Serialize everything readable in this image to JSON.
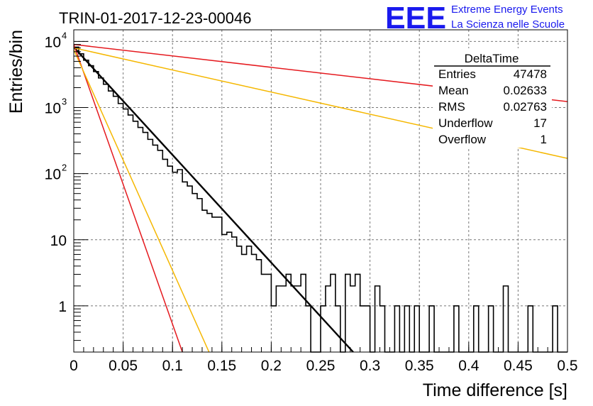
{
  "chart_data": {
    "type": "line",
    "title": "TRIN-01-2017-12-23-00046",
    "xlabel": "Time difference [s]",
    "ylabel": "Entries/bin",
    "xlim": [
      0,
      0.5
    ],
    "ylim": [
      0.2,
      15000
    ],
    "y_scale": "log",
    "grid": true,
    "x_ticks": [
      "0",
      "0.05",
      "0.1",
      "0.15",
      "0.2",
      "0.25",
      "0.3",
      "0.35",
      "0.4",
      "0.45",
      "0.5"
    ],
    "y_ticks": [
      {
        "value": 1,
        "label": "1"
      },
      {
        "value": 10,
        "label": "10"
      },
      {
        "value": 100,
        "label": "10",
        "exp": "2"
      },
      {
        "value": 1000,
        "label": "10",
        "exp": "3"
      },
      {
        "value": 10000,
        "label": "10",
        "exp": "4"
      }
    ],
    "histogram": {
      "color": "#000000",
      "bin_width": 0.005,
      "x_start": 0,
      "counts": [
        8200,
        6500,
        5200,
        4300,
        3500,
        2800,
        2250,
        1780,
        1480,
        1150,
        950,
        770,
        620,
        500,
        420,
        330,
        270,
        225,
        165,
        130,
        105,
        115,
        75,
        65,
        50,
        42,
        28,
        25,
        22,
        22,
        12,
        13,
        11,
        8,
        6,
        8,
        6,
        5,
        3,
        3,
        1,
        2,
        2,
        3,
        2,
        2,
        3,
        1,
        0,
        0,
        1,
        2,
        3,
        1,
        0,
        3,
        2,
        3,
        1,
        1,
        0,
        2,
        1,
        0,
        0,
        1,
        0,
        1,
        0,
        1,
        0,
        0,
        1,
        0,
        0,
        0,
        0,
        1,
        0,
        0,
        0,
        1,
        0,
        0,
        1,
        0,
        0,
        2,
        0,
        0,
        0,
        0,
        1,
        0,
        0,
        0,
        0,
        1,
        0,
        0
      ]
    },
    "series": [
      {
        "color": "#000000",
        "width": 2.4,
        "points": [
          [
            0,
            8200
          ],
          [
            0.283,
            0.2
          ]
        ]
      },
      {
        "color": "#e5191e",
        "width": 1.5,
        "points": [
          [
            0,
            9000
          ],
          [
            0.11,
            0.2
          ]
        ]
      },
      {
        "color": "#f5b700",
        "width": 1.5,
        "points": [
          [
            0,
            7500
          ],
          [
            0.137,
            0.2
          ]
        ]
      },
      {
        "color": "#e5191e",
        "width": 1.5,
        "points": [
          [
            0,
            9000
          ],
          [
            0.5,
            1230
          ]
        ]
      },
      {
        "color": "#f5b700",
        "width": 1.5,
        "points": [
          [
            0,
            8000
          ],
          [
            0.5,
            170
          ]
        ]
      }
    ],
    "stats_box": {
      "title": "DeltaTime",
      "rows": [
        {
          "label": "Entries",
          "value": "47478"
        },
        {
          "label": "Mean",
          "value": "0.02633"
        },
        {
          "label": "RMS",
          "value": "0.02763"
        },
        {
          "label": "Underflow",
          "value": "17"
        },
        {
          "label": "Overflow",
          "value": "1"
        }
      ]
    }
  },
  "logo": {
    "text": "EEE",
    "line1": "Extreme Energy Events",
    "line2": "La Scienza nelle Scuole",
    "color": "#1a1aee"
  }
}
